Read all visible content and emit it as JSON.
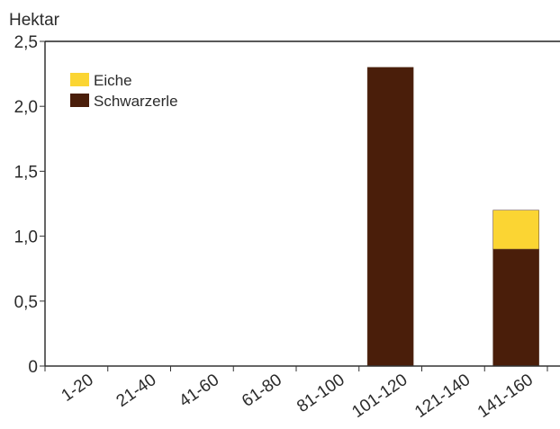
{
  "chart_data": {
    "type": "bar",
    "stacked": true,
    "title": "",
    "xlabel": "",
    "ylabel": "Hektar",
    "ylim": [
      0,
      2.5
    ],
    "yticks": [
      "0",
      "0,5",
      "1,0",
      "1,5",
      "2,0",
      "2,5"
    ],
    "ytick_values": [
      0,
      0.5,
      1.0,
      1.5,
      2.0,
      2.5
    ],
    "categories": [
      "1-20",
      "21-40",
      "41-60",
      "61-80",
      "81-100",
      "101-120",
      "121-140",
      "141-160"
    ],
    "series": [
      {
        "name": "Schwarzerle",
        "color": "#4a1e0a",
        "values": [
          0,
          0,
          0,
          0,
          0,
          2.3,
          0,
          0.9
        ]
      },
      {
        "name": "Eiche",
        "color": "#fbd533",
        "values": [
          0,
          0,
          0,
          0,
          0,
          0,
          0,
          0.3
        ]
      }
    ],
    "legend": {
      "placement": "top-left",
      "entries": [
        "Eiche",
        "Schwarzerle"
      ]
    },
    "grid": false
  }
}
